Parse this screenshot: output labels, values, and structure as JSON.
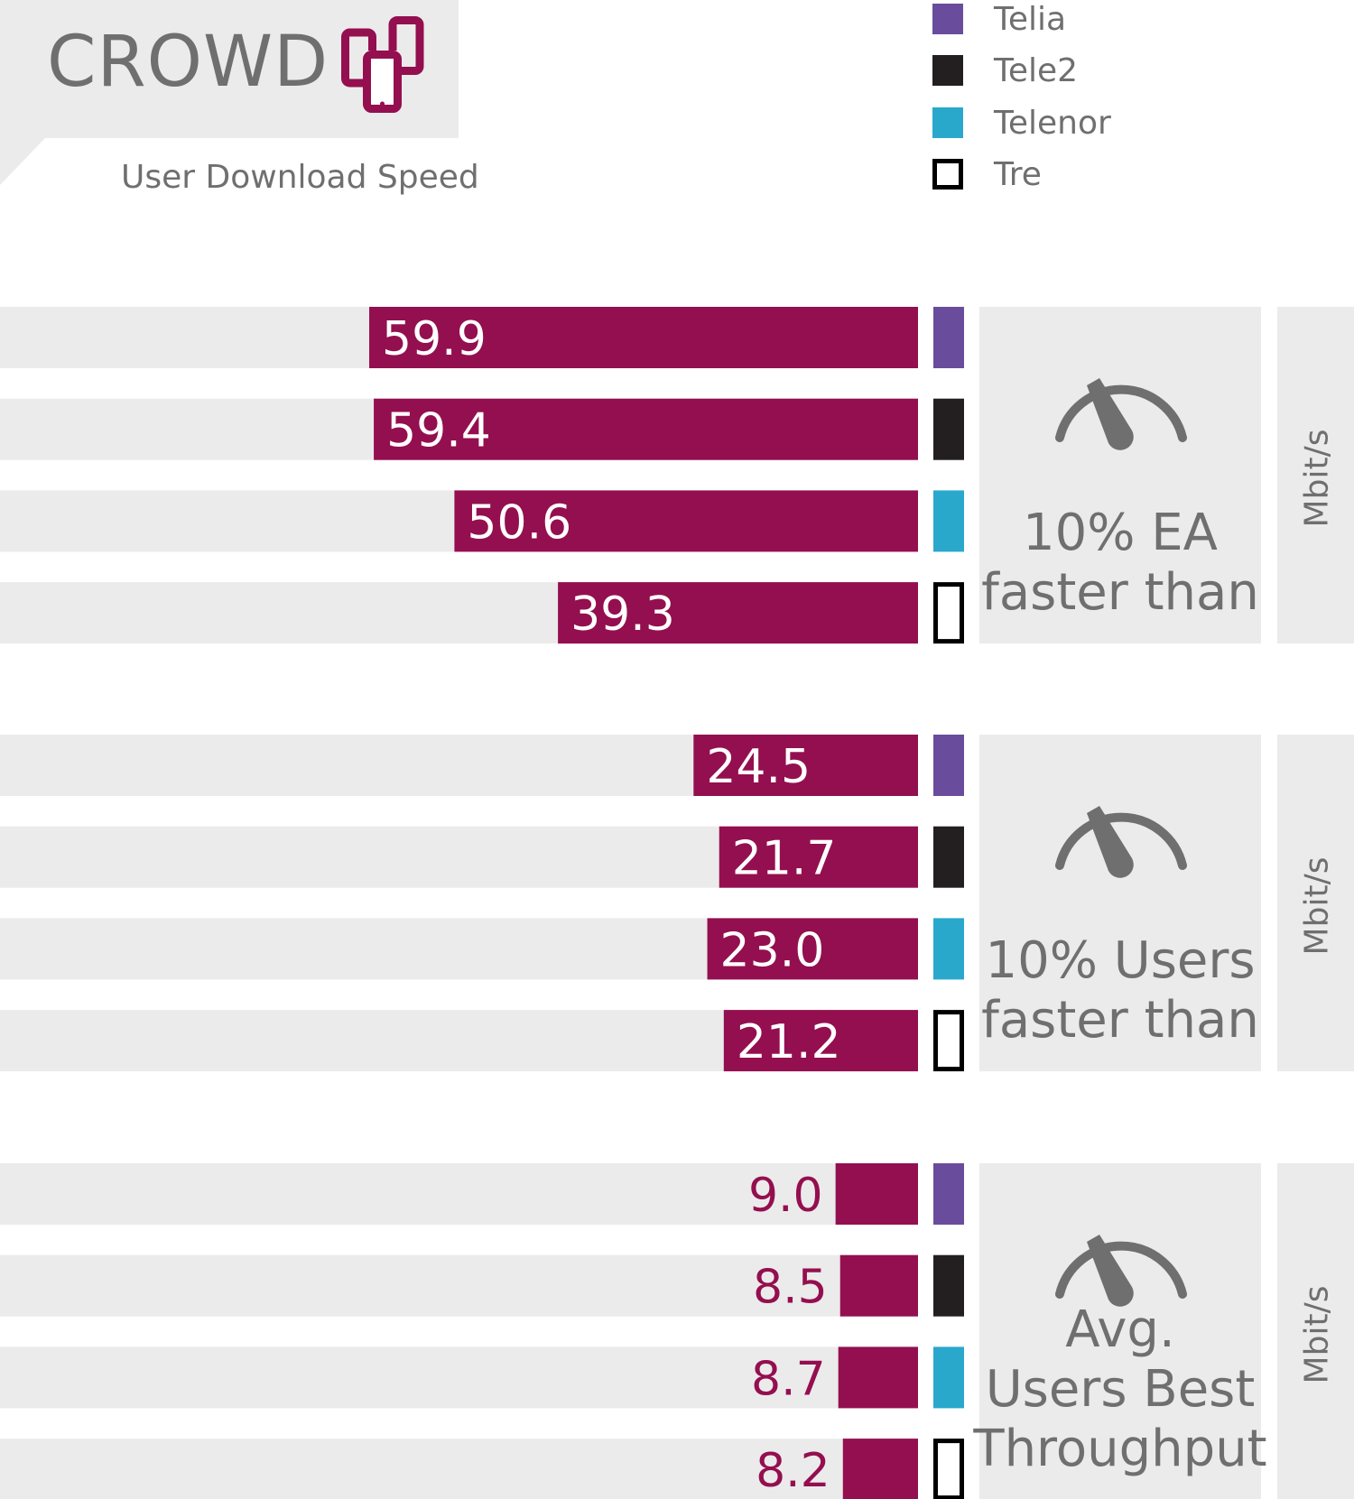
{
  "header": {
    "title": "CROWD",
    "subtitle": "User Download Speed",
    "icon": "mobile-phones-icon"
  },
  "colors": {
    "bar": "#940f4f",
    "track": "#ebebeb",
    "panel": "#ebebeb",
    "text_gray": "#6f6f6f",
    "label_light": "#ffffff"
  },
  "legend": [
    {
      "label": "Telia",
      "color": "#6a4c9c",
      "style": "filled"
    },
    {
      "label": "Tele2",
      "color": "#231f20",
      "style": "filled"
    },
    {
      "label": "Telenor",
      "color": "#29a8cc",
      "style": "filled"
    },
    {
      "label": "Tre",
      "color": "#000000",
      "style": "outline"
    }
  ],
  "chart_data": [
    {
      "type": "bar",
      "orientation": "horizontal",
      "title": "10% EA faster than",
      "title_lines": [
        "10% EA",
        "faster than"
      ],
      "unit": "Mbit/s",
      "icon": "speedometer-icon",
      "categories": [
        "Telia",
        "Tele2",
        "Telenor",
        "Tre"
      ],
      "values": [
        59.9,
        59.4,
        50.6,
        39.3
      ],
      "labels": [
        "59.9",
        "59.4",
        "50.6",
        "39.3"
      ]
    },
    {
      "type": "bar",
      "orientation": "horizontal",
      "title": "10% Users faster than",
      "title_lines": [
        "10% Users",
        "faster than"
      ],
      "unit": "Mbit/s",
      "icon": "speedometer-icon",
      "categories": [
        "Telia",
        "Tele2",
        "Telenor",
        "Tre"
      ],
      "values": [
        24.5,
        21.7,
        23.0,
        21.2
      ],
      "labels": [
        "24.5",
        "21.7",
        "23.0",
        "21.2"
      ]
    },
    {
      "type": "bar",
      "orientation": "horizontal",
      "title": "Avg. Users Best Throughput",
      "title_lines": [
        "Avg.",
        "Users Best",
        "Throughput"
      ],
      "unit": "Mbit/s",
      "icon": "speedometer-icon",
      "categories": [
        "Telia",
        "Tele2",
        "Telenor",
        "Tre"
      ],
      "values": [
        9.0,
        8.5,
        8.7,
        8.2
      ],
      "labels": [
        "9.0",
        "8.5",
        "8.7",
        "8.2"
      ]
    }
  ]
}
